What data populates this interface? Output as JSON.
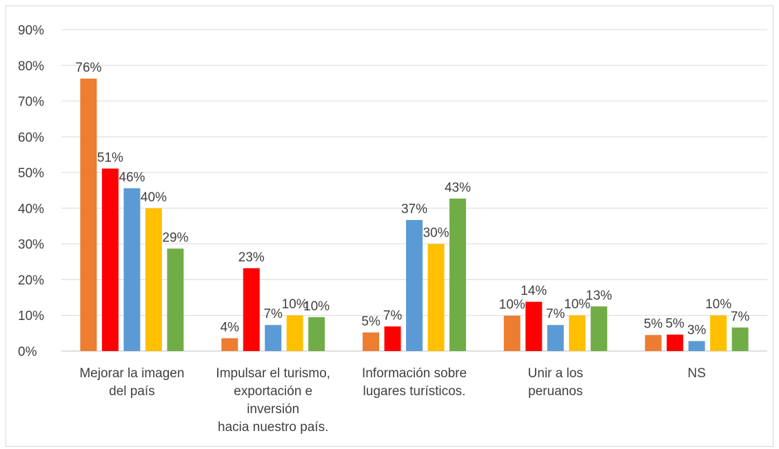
{
  "chart_data": {
    "type": "bar",
    "title": "",
    "xlabel": "",
    "ylabel": "",
    "ylim": [
      0,
      90
    ],
    "yticks": [
      0,
      10,
      20,
      30,
      40,
      50,
      60,
      70,
      80,
      90
    ],
    "ytick_labels": [
      "0%",
      "10%",
      "20%",
      "30%",
      "40%",
      "50%",
      "60%",
      "70%",
      "80%",
      "90%"
    ],
    "grid": true,
    "legend": "none",
    "categories": [
      [
        "Mejorar la imagen",
        "del país"
      ],
      [
        "Impulsar el turismo,",
        "exportación e",
        "inversión",
        "hacia  nuestro país."
      ],
      [
        "Información sobre",
        "lugares turísticos."
      ],
      [
        "Unir a los",
        "peruanos"
      ],
      [
        "NS"
      ]
    ],
    "series": [
      {
        "color": "#ED7D31",
        "values": [
          76.3,
          3.6,
          5.2,
          9.9,
          4.5
        ],
        "labels": [
          "76%",
          "4%",
          "5%",
          "10%",
          "5%"
        ]
      },
      {
        "color": "#FF0000",
        "values": [
          51.1,
          23.2,
          6.9,
          13.8,
          4.6
        ],
        "labels": [
          "51%",
          "23%",
          "7%",
          "14%",
          "5%"
        ]
      },
      {
        "color": "#5B9BD5",
        "values": [
          45.6,
          7.3,
          36.7,
          7.3,
          2.8
        ],
        "labels": [
          "46%",
          "7%",
          "37%",
          "7%",
          "3%"
        ]
      },
      {
        "color": "#FFC000",
        "values": [
          40.0,
          10.0,
          30.0,
          10.0,
          10.0
        ],
        "labels": [
          "40%",
          "10%",
          "30%",
          "10%",
          "10%"
        ]
      },
      {
        "color": "#70AD47",
        "values": [
          28.7,
          9.5,
          42.7,
          12.5,
          6.6
        ],
        "labels": [
          "29%",
          "10%",
          "43%",
          "13%",
          "7%"
        ]
      }
    ]
  }
}
